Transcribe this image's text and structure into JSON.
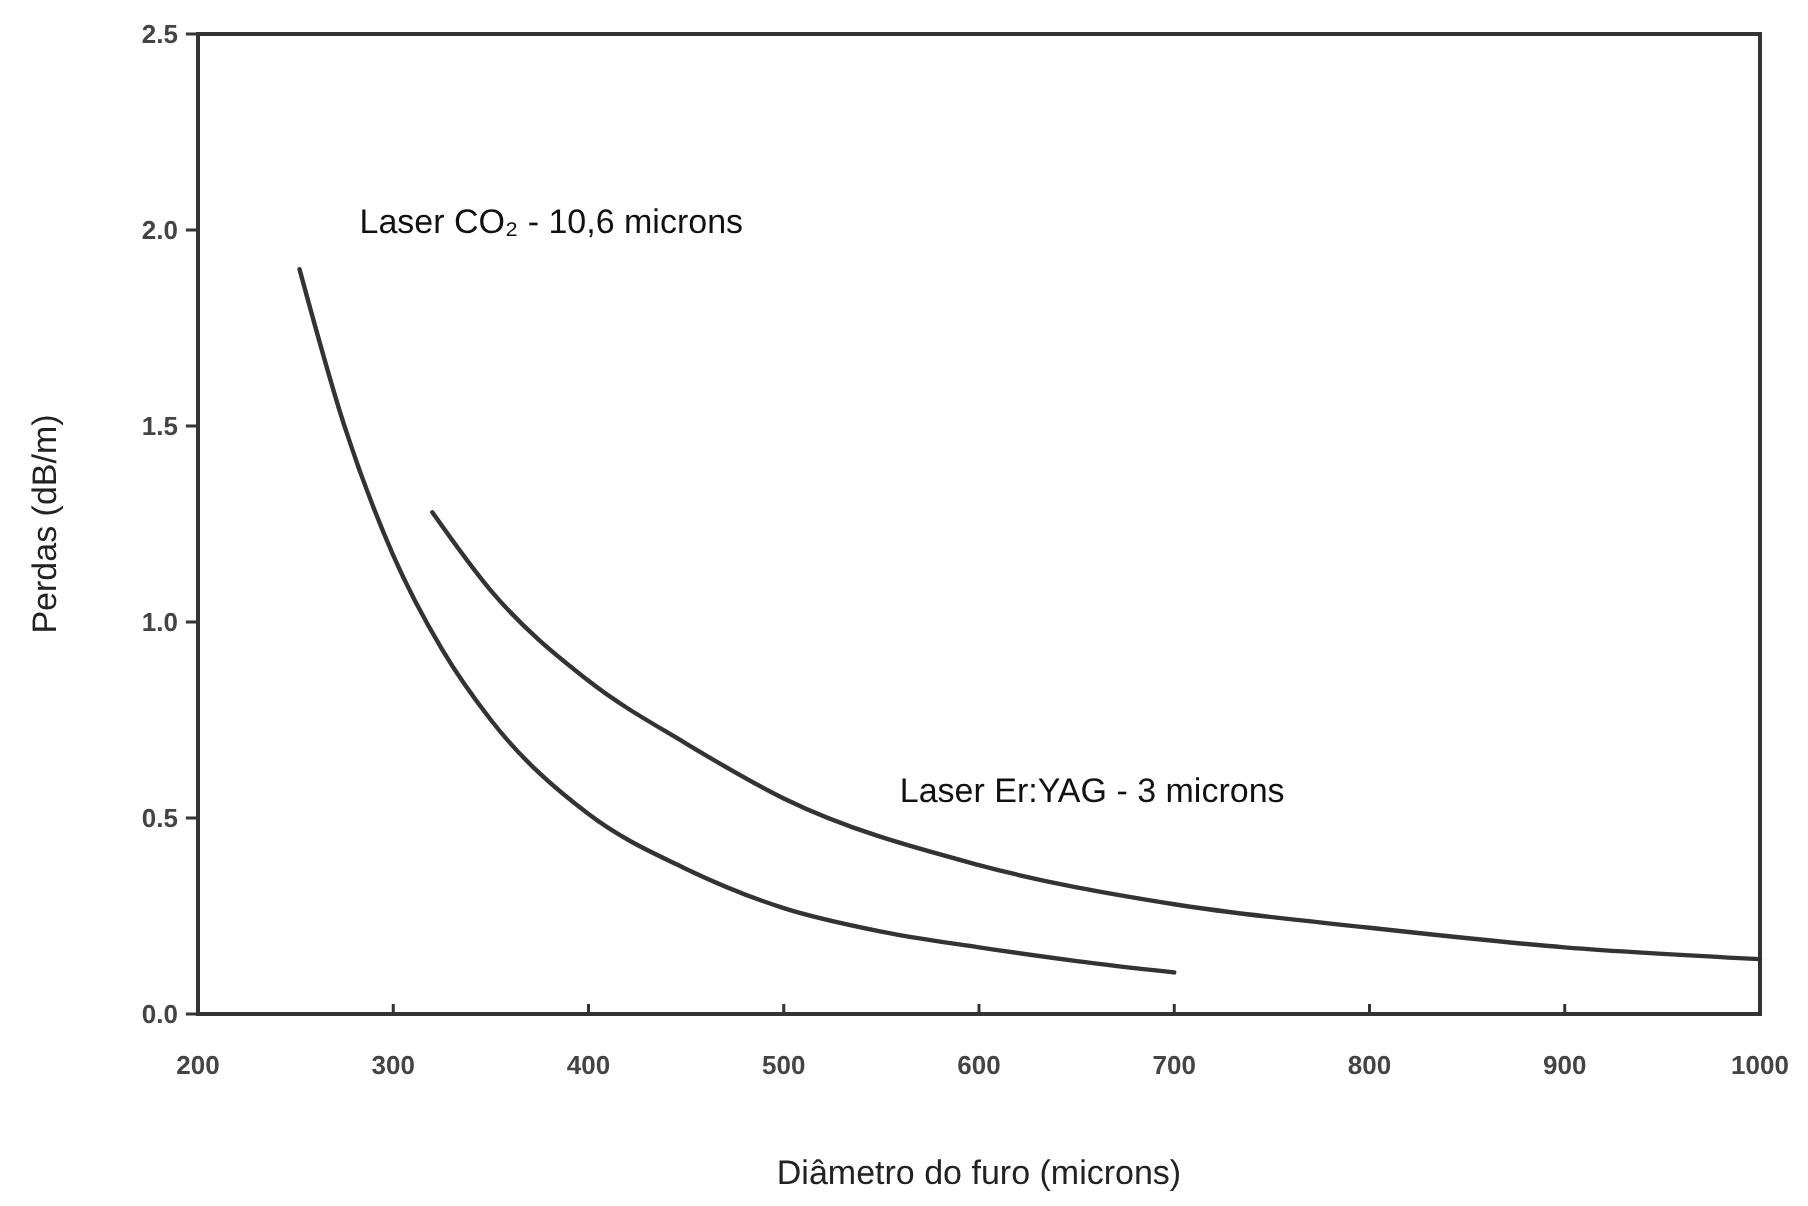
{
  "chart_data": {
    "type": "line",
    "xlabel": "Diâmetro do furo  (microns)",
    "ylabel": "Perdas  (dB/m)",
    "xlim": [
      200,
      1000
    ],
    "xticks": [
      200,
      300,
      400,
      500,
      600,
      700,
      800,
      900,
      1000
    ],
    "ylim": [
      0,
      2.5
    ],
    "yticks": [
      {
        "value": 0,
        "label": "0.0"
      },
      {
        "value": 0.5,
        "label": "0.5"
      },
      {
        "value": 1,
        "label": "1.0"
      },
      {
        "value": 1.5,
        "label": "1.5"
      },
      {
        "value": 2,
        "label": "2.0"
      },
      {
        "value": 2.5,
        "label": "2.5"
      }
    ],
    "grid": false,
    "marker": "none",
    "line_style": "solid",
    "series": [
      {
        "name": "Laser CO₂ - 10,6 microns",
        "color": "#333333",
        "x": [
          252,
          275,
          300,
          325,
          350,
          400,
          450,
          500,
          550,
          600,
          650,
          700
        ],
        "values": [
          1.9,
          1.5,
          1.17,
          0.93,
          0.75,
          0.51,
          0.37,
          0.27,
          0.21,
          0.17,
          0.135,
          0.106
        ]
      },
      {
        "name": "Laser Er:YAG - 3 microns",
        "color": "#333333",
        "x": [
          320,
          350,
          400,
          450,
          500,
          600,
          700,
          800,
          900,
          1000
        ],
        "values": [
          1.28,
          1.08,
          0.85,
          0.69,
          0.55,
          0.38,
          0.28,
          0.22,
          0.17,
          0.14
        ]
      }
    ]
  }
}
